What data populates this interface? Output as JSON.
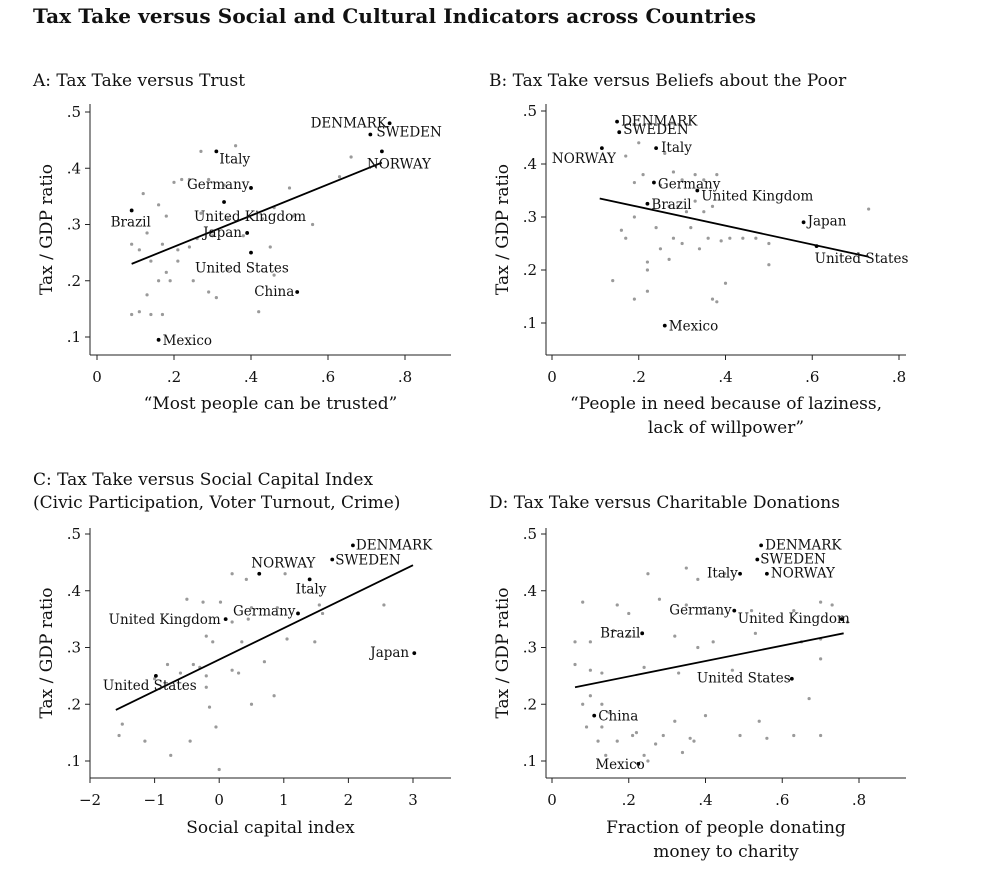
{
  "figure_title": "Tax Take versus Social and Cultural Indicators across Countries",
  "chart_data": [
    {
      "panel": "A",
      "type": "scatter",
      "title": "A: Tax Take versus Trust",
      "subtitle": "",
      "xlabel": [
        "“Most people can be trusted”"
      ],
      "ylabel": "Tax / GDP ratio",
      "xlim": [
        0,
        0.9
      ],
      "ylim": [
        0.08,
        0.52
      ],
      "xticks": [
        0,
        0.2,
        0.4,
        0.6,
        0.8
      ],
      "xtick_labels": [
        "0",
        ".2",
        ".4",
        ".6",
        ".8"
      ],
      "yticks": [
        0.1,
        0.2,
        0.3,
        0.4,
        0.5
      ],
      "ytick_labels": [
        ".1",
        ".2",
        ".3",
        ".4",
        ".5"
      ],
      "fit_line": [
        [
          0.09,
          0.23
        ],
        [
          0.74,
          0.41
        ]
      ],
      "labeled_points": [
        {
          "name": "DENMARK",
          "x": 0.76,
          "y": 0.48
        },
        {
          "name": "SWEDEN",
          "x": 0.71,
          "y": 0.46
        },
        {
          "name": "NORWAY",
          "x": 0.74,
          "y": 0.43
        },
        {
          "name": "Italy",
          "x": 0.31,
          "y": 0.43
        },
        {
          "name": "Germany",
          "x": 0.4,
          "y": 0.365
        },
        {
          "name": "United Kingdom",
          "x": 0.33,
          "y": 0.34
        },
        {
          "name": "Brazil",
          "x": 0.09,
          "y": 0.325
        },
        {
          "name": "Japan",
          "x": 0.39,
          "y": 0.285
        },
        {
          "name": "United States",
          "x": 0.4,
          "y": 0.25
        },
        {
          "name": "China",
          "x": 0.52,
          "y": 0.18
        },
        {
          "name": "Mexico",
          "x": 0.16,
          "y": 0.095
        }
      ],
      "other_points": [
        [
          0.12,
          0.355
        ],
        [
          0.16,
          0.335
        ],
        [
          0.18,
          0.315
        ],
        [
          0.2,
          0.375
        ],
        [
          0.22,
          0.38
        ],
        [
          0.24,
          0.38
        ],
        [
          0.27,
          0.43
        ],
        [
          0.29,
          0.38
        ],
        [
          0.33,
          0.37
        ],
        [
          0.36,
          0.44
        ],
        [
          0.27,
          0.32
        ],
        [
          0.26,
          0.275
        ],
        [
          0.3,
          0.28
        ],
        [
          0.38,
          0.28
        ],
        [
          0.34,
          0.31
        ],
        [
          0.43,
          0.31
        ],
        [
          0.46,
          0.33
        ],
        [
          0.5,
          0.365
        ],
        [
          0.51,
          0.315
        ],
        [
          0.56,
          0.3
        ],
        [
          0.63,
          0.385
        ],
        [
          0.66,
          0.42
        ],
        [
          0.09,
          0.265
        ],
        [
          0.11,
          0.255
        ],
        [
          0.13,
          0.285
        ],
        [
          0.17,
          0.265
        ],
        [
          0.21,
          0.255
        ],
        [
          0.24,
          0.26
        ],
        [
          0.14,
          0.235
        ],
        [
          0.18,
          0.215
        ],
        [
          0.19,
          0.2
        ],
        [
          0.16,
          0.2
        ],
        [
          0.21,
          0.235
        ],
        [
          0.13,
          0.175
        ],
        [
          0.09,
          0.14
        ],
        [
          0.11,
          0.145
        ],
        [
          0.14,
          0.14
        ],
        [
          0.17,
          0.14
        ],
        [
          0.29,
          0.18
        ],
        [
          0.31,
          0.17
        ],
        [
          0.42,
          0.145
        ],
        [
          0.45,
          0.26
        ],
        [
          0.46,
          0.21
        ],
        [
          0.34,
          0.22
        ],
        [
          0.25,
          0.2
        ]
      ]
    },
    {
      "panel": "B",
      "type": "scatter",
      "title": "B: Tax Take versus Beliefs about the Poor",
      "subtitle": "",
      "xlabel": [
        "“People in need because of laziness,",
        "lack of willpower”"
      ],
      "ylabel": "Tax / GDP ratio",
      "xlim": [
        0,
        0.82
      ],
      "ylim": [
        0.05,
        0.52
      ],
      "xticks": [
        0,
        0.2,
        0.4,
        0.6,
        0.8
      ],
      "xtick_labels": [
        "0",
        ".2",
        ".4",
        ".6",
        ".8"
      ],
      "yticks": [
        0.1,
        0.2,
        0.3,
        0.4,
        0.5
      ],
      "ytick_labels": [
        ".1",
        ".2",
        ".3",
        ".4",
        ".5"
      ],
      "fit_line": [
        [
          0.11,
          0.335
        ],
        [
          0.73,
          0.225
        ]
      ],
      "labeled_points": [
        {
          "name": "DENMARK",
          "x": 0.15,
          "y": 0.48
        },
        {
          "name": "SWEDEN",
          "x": 0.155,
          "y": 0.46
        },
        {
          "name": "NORWAY",
          "x": 0.115,
          "y": 0.43
        },
        {
          "name": "Italy",
          "x": 0.24,
          "y": 0.43
        },
        {
          "name": "Germany",
          "x": 0.235,
          "y": 0.365
        },
        {
          "name": "United Kingdom",
          "x": 0.335,
          "y": 0.35
        },
        {
          "name": "Brazil",
          "x": 0.22,
          "y": 0.325
        },
        {
          "name": "Japan",
          "x": 0.58,
          "y": 0.29
        },
        {
          "name": "United States",
          "x": 0.61,
          "y": 0.245
        },
        {
          "name": "Mexico",
          "x": 0.26,
          "y": 0.095
        }
      ],
      "other_points": [
        [
          0.17,
          0.415
        ],
        [
          0.2,
          0.44
        ],
        [
          0.26,
          0.42
        ],
        [
          0.28,
          0.385
        ],
        [
          0.3,
          0.37
        ],
        [
          0.33,
          0.38
        ],
        [
          0.35,
          0.37
        ],
        [
          0.38,
          0.38
        ],
        [
          0.21,
          0.38
        ],
        [
          0.19,
          0.365
        ],
        [
          0.25,
          0.36
        ],
        [
          0.27,
          0.32
        ],
        [
          0.29,
          0.32
        ],
        [
          0.31,
          0.31
        ],
        [
          0.33,
          0.33
        ],
        [
          0.35,
          0.31
        ],
        [
          0.37,
          0.32
        ],
        [
          0.19,
          0.3
        ],
        [
          0.24,
          0.28
        ],
        [
          0.28,
          0.26
        ],
        [
          0.3,
          0.25
        ],
        [
          0.32,
          0.28
        ],
        [
          0.36,
          0.26
        ],
        [
          0.39,
          0.255
        ],
        [
          0.41,
          0.26
        ],
        [
          0.44,
          0.26
        ],
        [
          0.47,
          0.26
        ],
        [
          0.5,
          0.25
        ],
        [
          0.16,
          0.275
        ],
        [
          0.17,
          0.26
        ],
        [
          0.25,
          0.24
        ],
        [
          0.27,
          0.22
        ],
        [
          0.34,
          0.24
        ],
        [
          0.22,
          0.215
        ],
        [
          0.22,
          0.2
        ],
        [
          0.14,
          0.18
        ],
        [
          0.19,
          0.145
        ],
        [
          0.22,
          0.16
        ],
        [
          0.37,
          0.145
        ],
        [
          0.38,
          0.14
        ],
        [
          0.4,
          0.175
        ],
        [
          0.5,
          0.21
        ],
        [
          0.73,
          0.315
        ]
      ]
    },
    {
      "panel": "C",
      "type": "scatter",
      "title": "C: Tax Take versus Social Capital Index",
      "subtitle": "(Civic Participation, Voter Turnout, Crime)",
      "xlabel": [
        "Social capital index"
      ],
      "ylabel": "Tax / GDP ratio",
      "xlim": [
        -2.05,
        3.5
      ],
      "ylim": [
        0.07,
        0.52
      ],
      "xticks": [
        -2,
        -1,
        0,
        1,
        2,
        3
      ],
      "xtick_labels": [
        "−2",
        "−1",
        "0",
        "1",
        "2",
        "3"
      ],
      "yticks": [
        0.1,
        0.2,
        0.3,
        0.4,
        0.5
      ],
      "ytick_labels": [
        ".1",
        ".2",
        ".3",
        ".4",
        ".5"
      ],
      "fit_line": [
        [
          -1.6,
          0.19
        ],
        [
          3.0,
          0.445
        ]
      ],
      "labeled_points": [
        {
          "name": "DENMARK",
          "x": 2.07,
          "y": 0.48
        },
        {
          "name": "SWEDEN",
          "x": 1.75,
          "y": 0.455
        },
        {
          "name": "NORWAY",
          "x": 0.62,
          "y": 0.43
        },
        {
          "name": "Italy",
          "x": 1.4,
          "y": 0.42
        },
        {
          "name": "Germany",
          "x": 1.22,
          "y": 0.36
        },
        {
          "name": "United Kingdom",
          "x": 0.1,
          "y": 0.35
        },
        {
          "name": "Japan",
          "x": 3.02,
          "y": 0.29
        },
        {
          "name": "United States",
          "x": -0.98,
          "y": 0.25
        }
      ],
      "other_points": [
        [
          0.2,
          0.43
        ],
        [
          0.42,
          0.42
        ],
        [
          1.02,
          0.43
        ],
        [
          -0.5,
          0.385
        ],
        [
          -0.25,
          0.38
        ],
        [
          0.02,
          0.38
        ],
        [
          0.5,
          0.37
        ],
        [
          0.9,
          0.37
        ],
        [
          1.55,
          0.375
        ],
        [
          1.6,
          0.36
        ],
        [
          0.2,
          0.345
        ],
        [
          0.45,
          0.35
        ],
        [
          -0.2,
          0.32
        ],
        [
          -0.1,
          0.31
        ],
        [
          0.35,
          0.31
        ],
        [
          1.05,
          0.315
        ],
        [
          1.48,
          0.31
        ],
        [
          2.55,
          0.375
        ],
        [
          -0.8,
          0.27
        ],
        [
          -0.6,
          0.255
        ],
        [
          -0.3,
          0.265
        ],
        [
          -0.2,
          0.25
        ],
        [
          -0.2,
          0.23
        ],
        [
          0.2,
          0.26
        ],
        [
          0.3,
          0.255
        ],
        [
          0.7,
          0.275
        ],
        [
          -0.4,
          0.27
        ],
        [
          -1.0,
          0.245
        ],
        [
          -1.5,
          0.165
        ],
        [
          -1.55,
          0.145
        ],
        [
          -1.15,
          0.135
        ],
        [
          -0.75,
          0.11
        ],
        [
          -0.45,
          0.135
        ],
        [
          -0.05,
          0.16
        ],
        [
          -0.15,
          0.195
        ],
        [
          0.5,
          0.2
        ],
        [
          0.85,
          0.215
        ],
        [
          0.0,
          0.085
        ]
      ]
    },
    {
      "panel": "D",
      "type": "scatter",
      "title": "D: Tax Take versus Charitable Donations",
      "subtitle": "",
      "xlabel": [
        "Fraction of people donating",
        "money to charity"
      ],
      "ylabel": "Tax / GDP ratio",
      "xlim": [
        -0.02,
        0.92
      ],
      "ylim": [
        0.07,
        0.52
      ],
      "xticks": [
        0,
        0.2,
        0.4,
        0.6,
        0.8
      ],
      "xtick_labels": [
        "0",
        ".2",
        ".4",
        ".6",
        ".8"
      ],
      "yticks": [
        0.1,
        0.2,
        0.3,
        0.4,
        0.5
      ],
      "ytick_labels": [
        ".1",
        ".2",
        ".3",
        ".4",
        ".5"
      ],
      "fit_line": [
        [
          0.06,
          0.23
        ],
        [
          0.76,
          0.325
        ]
      ],
      "labeled_points": [
        {
          "name": "DENMARK",
          "x": 0.545,
          "y": 0.48
        },
        {
          "name": "SWEDEN",
          "x": 0.535,
          "y": 0.455
        },
        {
          "name": "NORWAY",
          "x": 0.56,
          "y": 0.43
        },
        {
          "name": "Italy",
          "x": 0.49,
          "y": 0.43
        },
        {
          "name": "Germany",
          "x": 0.475,
          "y": 0.365
        },
        {
          "name": "United Kingdom",
          "x": 0.755,
          "y": 0.35
        },
        {
          "name": "Brazil",
          "x": 0.235,
          "y": 0.325
        },
        {
          "name": "United States",
          "x": 0.625,
          "y": 0.245
        },
        {
          "name": "China",
          "x": 0.11,
          "y": 0.18
        },
        {
          "name": "Mexico",
          "x": 0.225,
          "y": 0.095
        }
      ],
      "other_points": [
        [
          0.25,
          0.43
        ],
        [
          0.35,
          0.44
        ],
        [
          0.38,
          0.42
        ],
        [
          0.45,
          0.43
        ],
        [
          0.08,
          0.38
        ],
        [
          0.17,
          0.375
        ],
        [
          0.2,
          0.36
        ],
        [
          0.28,
          0.385
        ],
        [
          0.35,
          0.375
        ],
        [
          0.4,
          0.37
        ],
        [
          0.52,
          0.365
        ],
        [
          0.63,
          0.365
        ],
        [
          0.7,
          0.38
        ],
        [
          0.73,
          0.375
        ],
        [
          0.77,
          0.345
        ],
        [
          0.1,
          0.31
        ],
        [
          0.16,
          0.33
        ],
        [
          0.2,
          0.32
        ],
        [
          0.32,
          0.32
        ],
        [
          0.38,
          0.3
        ],
        [
          0.42,
          0.31
        ],
        [
          0.53,
          0.325
        ],
        [
          0.65,
          0.31
        ],
        [
          0.7,
          0.315
        ],
        [
          0.06,
          0.31
        ],
        [
          0.06,
          0.27
        ],
        [
          0.1,
          0.26
        ],
        [
          0.13,
          0.255
        ],
        [
          0.24,
          0.265
        ],
        [
          0.33,
          0.255
        ],
        [
          0.47,
          0.26
        ],
        [
          0.7,
          0.28
        ],
        [
          0.08,
          0.2
        ],
        [
          0.1,
          0.215
        ],
        [
          0.13,
          0.2
        ],
        [
          0.15,
          0.185
        ],
        [
          0.09,
          0.16
        ],
        [
          0.13,
          0.16
        ],
        [
          0.12,
          0.135
        ],
        [
          0.17,
          0.135
        ],
        [
          0.21,
          0.145
        ],
        [
          0.22,
          0.15
        ],
        [
          0.27,
          0.13
        ],
        [
          0.29,
          0.145
        ],
        [
          0.32,
          0.17
        ],
        [
          0.34,
          0.115
        ],
        [
          0.36,
          0.14
        ],
        [
          0.37,
          0.135
        ],
        [
          0.4,
          0.18
        ],
        [
          0.49,
          0.145
        ],
        [
          0.54,
          0.17
        ],
        [
          0.56,
          0.14
        ],
        [
          0.63,
          0.145
        ],
        [
          0.67,
          0.21
        ],
        [
          0.7,
          0.145
        ],
        [
          0.25,
          0.1
        ],
        [
          0.14,
          0.11
        ],
        [
          0.24,
          0.11
        ]
      ]
    }
  ]
}
